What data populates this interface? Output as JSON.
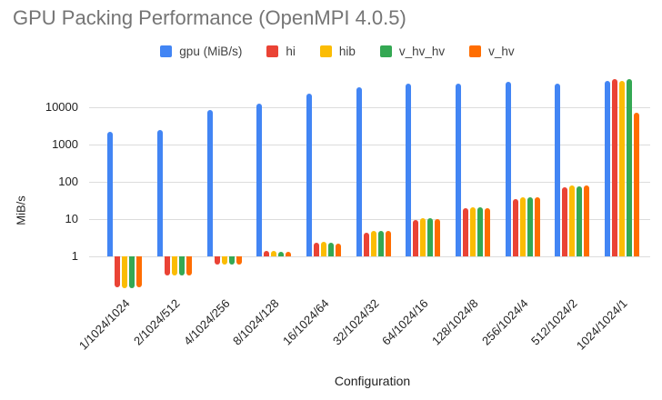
{
  "chart_data": {
    "type": "bar",
    "title": "GPU Packing Performance (OpenMPI 4.0.5)",
    "xlabel": "Configuration",
    "ylabel": "MiB/s",
    "y_scale": "log",
    "grid": true,
    "legend_position": "top",
    "ylim": [
      0.1,
      62000
    ],
    "ytick_labels": [
      "1",
      "10",
      "100",
      "1000",
      "10000"
    ],
    "ytick_values": [
      1,
      10,
      100,
      1000,
      10000
    ],
    "categories": [
      "1/1024/1024",
      "2/1024/512",
      "4/1024/256",
      "8/1024/128",
      "16/1024/64",
      "32/1024/32",
      "64/1024/16",
      "128/1024/8",
      "256/1024/4",
      "512/1024/2",
      "1024/1024/1"
    ],
    "series": [
      {
        "name": "gpu (MiB/s)",
        "color": "#4285F4",
        "values": [
          2100,
          2400,
          8100,
          12500,
          23000,
          33000,
          41000,
          43000,
          46000,
          43000,
          50000
        ]
      },
      {
        "name": "hi",
        "color": "#EA4335",
        "values": [
          0.15,
          0.3,
          0.6,
          1.4,
          2.3,
          4.4,
          9.4,
          19,
          35,
          72,
          56000
        ]
      },
      {
        "name": "hib",
        "color": "#FBBC04",
        "values": [
          0.14,
          0.3,
          0.6,
          1.4,
          2.4,
          4.9,
          10.3,
          20.5,
          38,
          78,
          50000
        ]
      },
      {
        "name": "v_hv_hv",
        "color": "#34A853",
        "values": [
          0.14,
          0.31,
          0.62,
          1.35,
          2.3,
          4.7,
          10.3,
          20.5,
          38,
          75,
          54000
        ]
      },
      {
        "name": "v_hv",
        "color": "#FF6D01",
        "values": [
          0.145,
          0.31,
          0.6,
          1.3,
          2.2,
          4.7,
          9.7,
          20,
          38,
          77,
          6800
        ]
      }
    ]
  }
}
